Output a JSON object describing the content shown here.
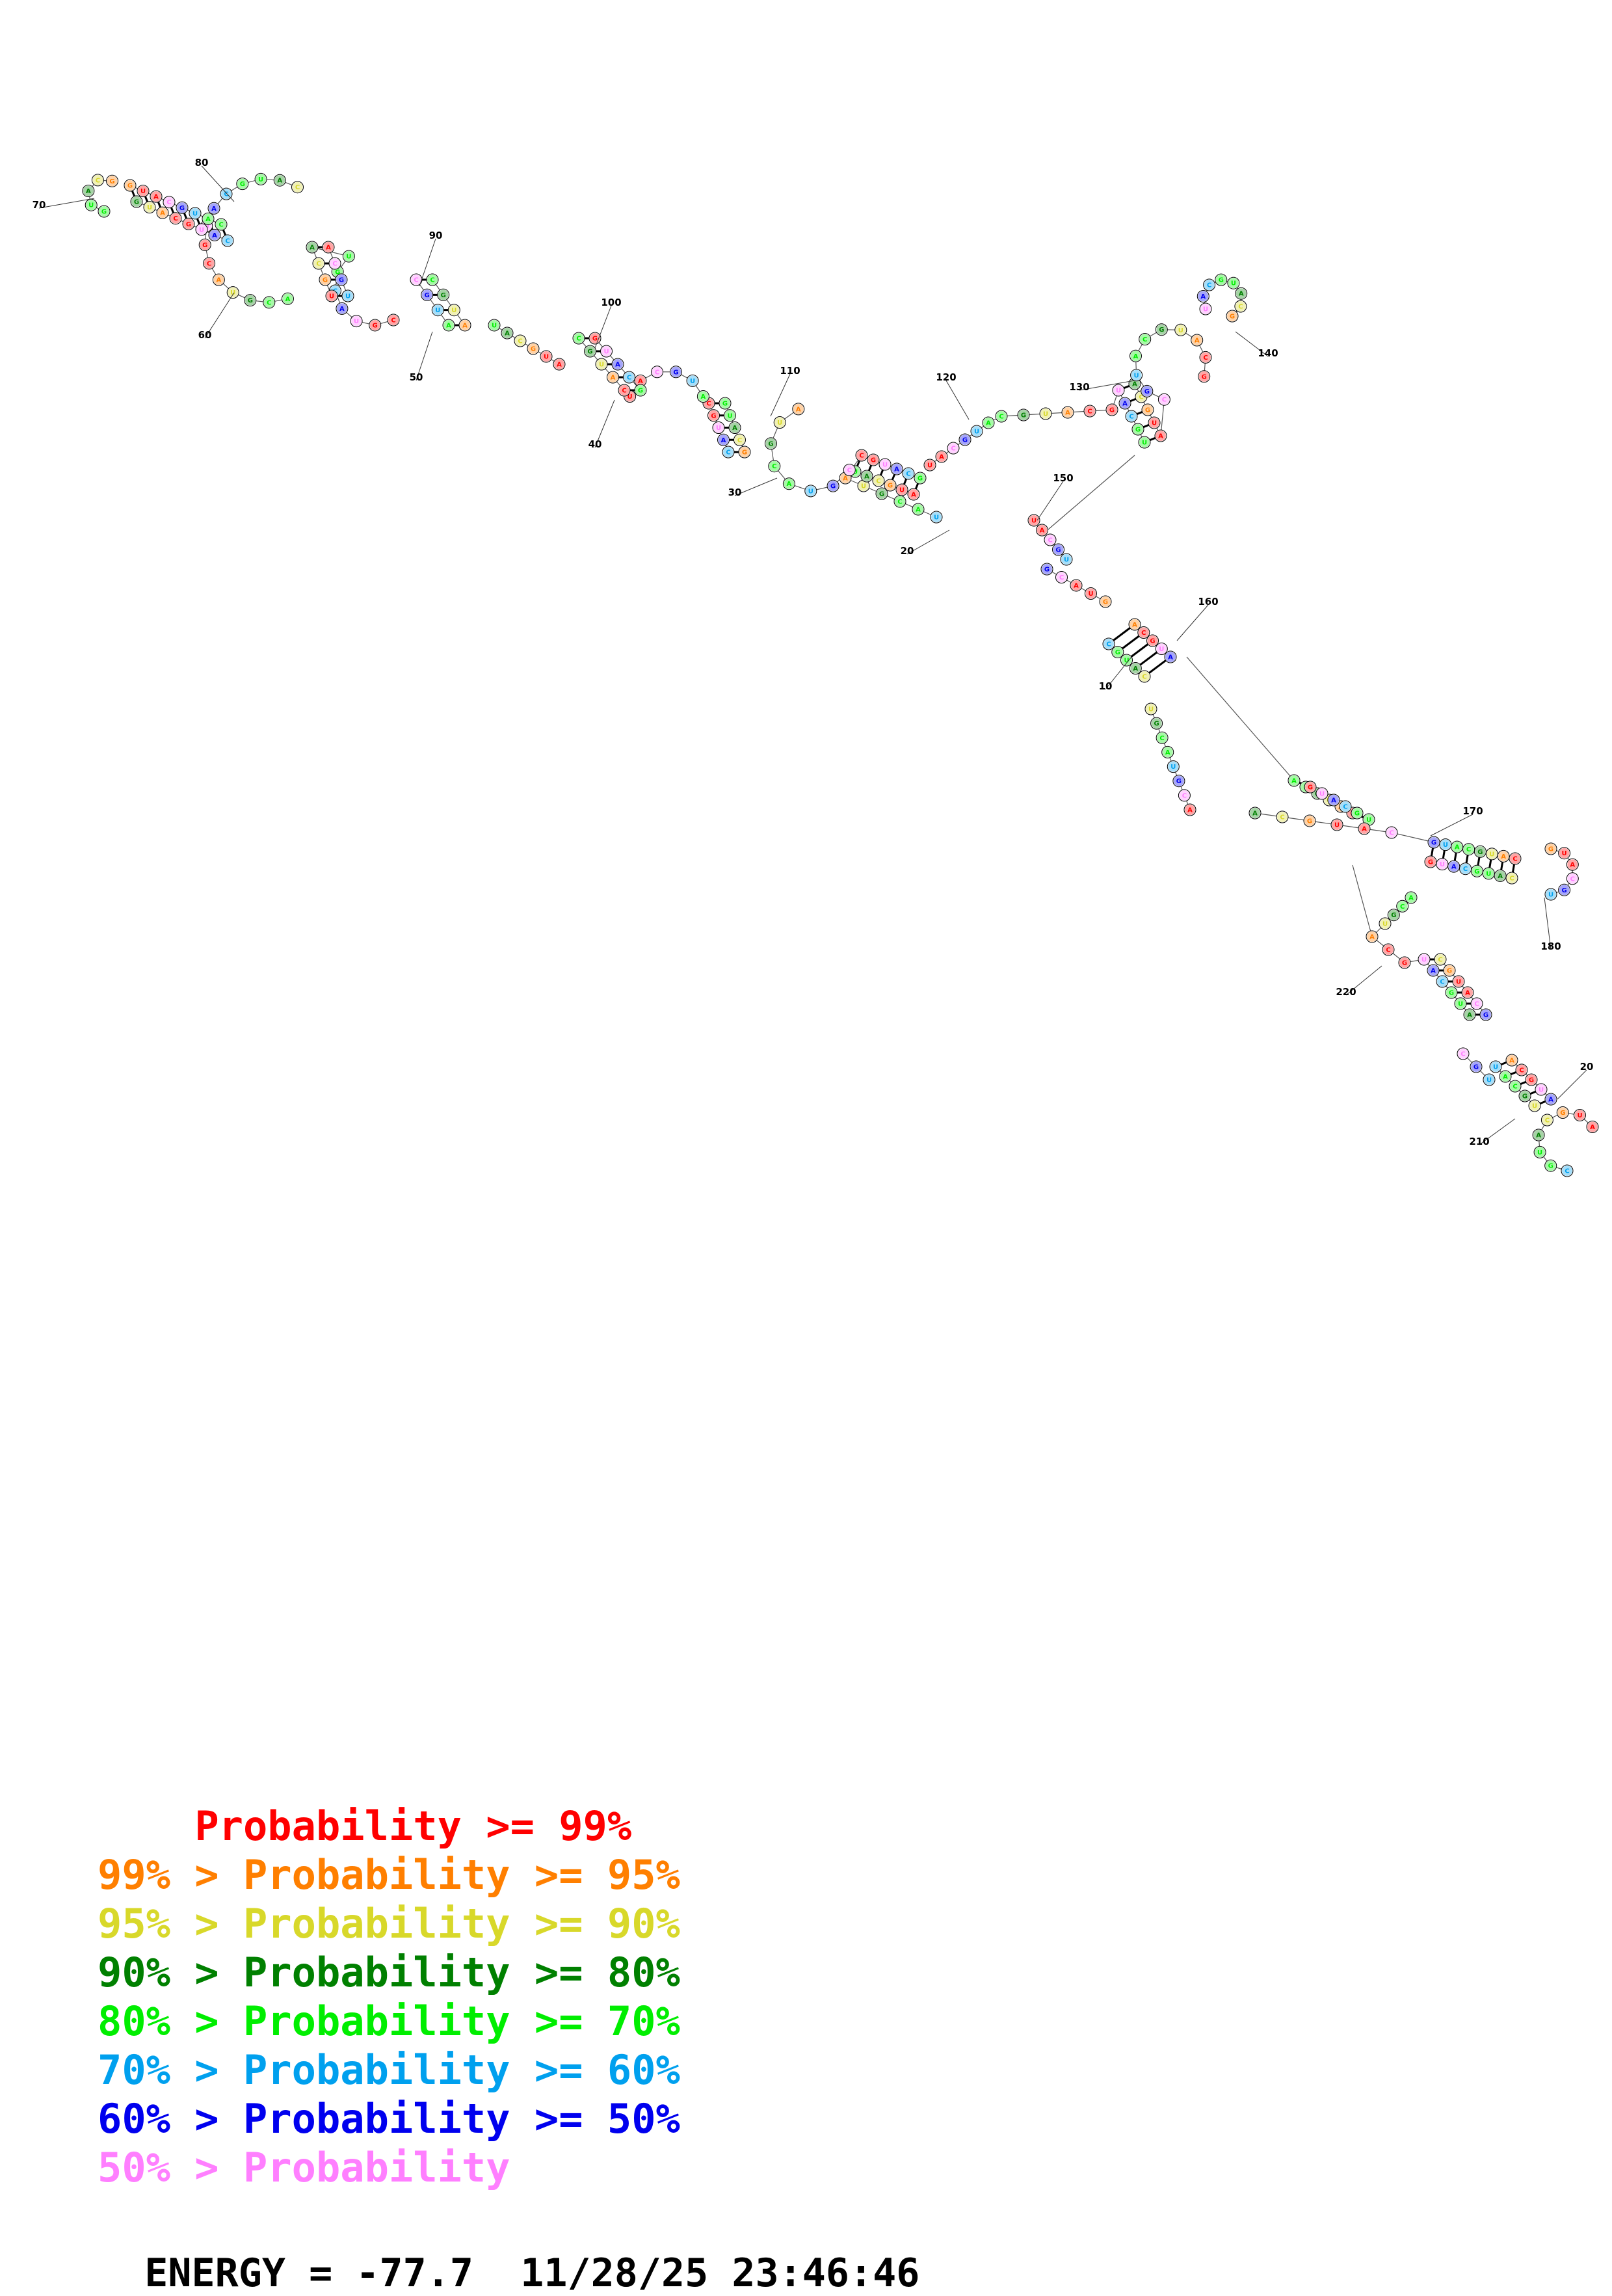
{
  "diagram": {
    "type": "rna-secondary-structure",
    "colors": {
      "p99": "#ff0000",
      "p95": "#ff7f00",
      "p90": "#d8d82a",
      "p80": "#008000",
      "p70": "#00ee00",
      "p60": "#00a0ee",
      "p50": "#0000ee",
      "plow": "#ff7fff"
    },
    "position_labels": [
      "10",
      "20",
      "30",
      "40",
      "50",
      "60",
      "70",
      "80",
      "90",
      "100",
      "110",
      "120",
      "130",
      "140",
      "150",
      "160",
      "170",
      "180",
      "20",
      "210",
      "220"
    ]
  },
  "legend": [
    {
      "prefix": "    ",
      "middle": "Probability",
      "suffix": " >= 99%",
      "color": "#ff0000"
    },
    {
      "prefix": "99% > ",
      "middle": "Probability",
      "suffix": " >= 95%",
      "color": "#ff7f00"
    },
    {
      "prefix": "95% > ",
      "middle": "Probability",
      "suffix": " >= 90%",
      "color": "#d8d82a"
    },
    {
      "prefix": "90% > ",
      "middle": "Probability",
      "suffix": " >= 80%",
      "color": "#008000"
    },
    {
      "prefix": "80% > ",
      "middle": "Probability",
      "suffix": " >= 70%",
      "color": "#00ee00"
    },
    {
      "prefix": "70% > ",
      "middle": "Probability",
      "suffix": " >= 60%",
      "color": "#00a0ee"
    },
    {
      "prefix": "60% > ",
      "middle": "Probability",
      "suffix": " >= 50%",
      "color": "#0000ee"
    },
    {
      "prefix": "50% > ",
      "middle": "Probability",
      "suffix": "",
      "color": "#ff7fff"
    }
  ],
  "footer": {
    "energy_text": "ENERGY = -77.7  11/28/25 23:46:46"
  }
}
